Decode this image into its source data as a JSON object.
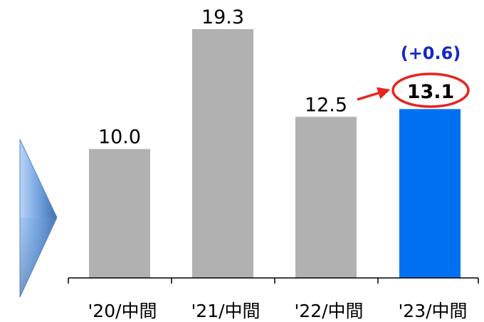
{
  "chart_data": {
    "type": "bar",
    "categories": [
      "'20/中間",
      "'21/中間",
      "'22/中間",
      "'23/中間"
    ],
    "values": [
      10.0,
      19.3,
      12.5,
      13.1
    ],
    "value_labels": [
      "10.0",
      "19.3",
      "12.5",
      "13.1"
    ],
    "highlight_index": 3,
    "change_annotation": "(+0.6)",
    "ylim": [
      0,
      19.3
    ],
    "grid": false,
    "legend": "none",
    "title": "",
    "xlabel": "",
    "ylabel": ""
  },
  "colors": {
    "bar_default": "#b1b1b1",
    "bar_highlight": "#0070f3",
    "annotation_red": "#e8231e",
    "annotation_blue": "#1428c8",
    "axis": "#000000",
    "triangle_light": "#b8d4f5",
    "triangle_dark": "#3f6fb0"
  },
  "decorations": {
    "left_pointer": "triangle-arrow-icon"
  }
}
